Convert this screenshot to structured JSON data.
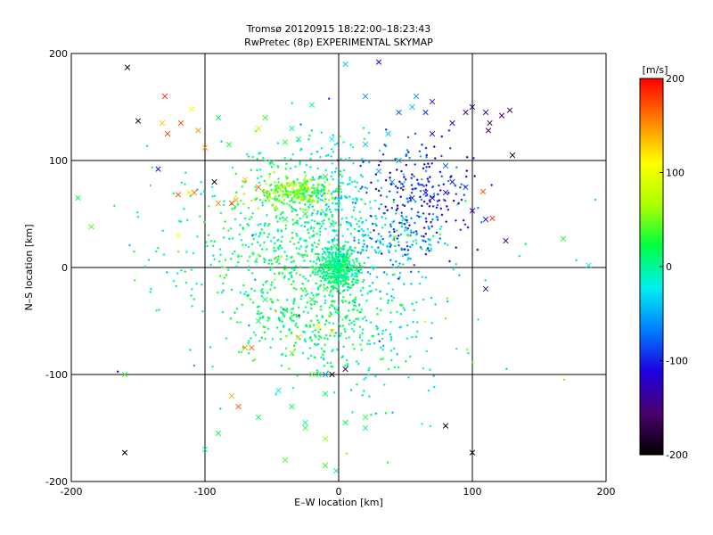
{
  "chart_data": {
    "type": "scatter",
    "title": "Tromsø 20120915  18:22:00–18:23:43",
    "subtitle": "RwPretec (8p) EXPERIMENTAL SKYMAP",
    "xlabel": "E–W location [km]",
    "ylabel": "N–S location [km]",
    "xlim": [
      -200,
      200
    ],
    "ylim": [
      -200,
      200
    ],
    "xticks": [
      -200,
      -100,
      0,
      100,
      200
    ],
    "yticks": [
      -200,
      -100,
      0,
      100,
      200
    ],
    "grid": true,
    "colorbar": {
      "label": "[m/s]",
      "min": -200,
      "max": 200,
      "ticks": [
        200,
        100,
        0,
        -100,
        -200
      ],
      "colormap": [
        "#000000",
        "#4b006e",
        "#1c00e0",
        "#0080ff",
        "#00f0f0",
        "#00ff40",
        "#b0ff00",
        "#ffff00",
        "#ff8000",
        "#ff0000"
      ]
    },
    "series": [
      {
        "marker": "cross",
        "points": [
          [
            -158,
            187,
            -200
          ],
          [
            -130,
            160,
            185
          ],
          [
            -150,
            137,
            -180
          ],
          [
            -132,
            135,
            130
          ],
          [
            -128,
            125,
            180
          ],
          [
            -118,
            135,
            175
          ],
          [
            -110,
            148,
            110
          ],
          [
            -105,
            128,
            150
          ],
          [
            -135,
            92,
            -120
          ],
          [
            -108,
            70,
            160
          ],
          [
            -120,
            68,
            170
          ],
          [
            -112,
            70,
            120
          ],
          [
            -100,
            112,
            150
          ],
          [
            -120,
            30,
            110
          ],
          [
            -93,
            80,
            -200
          ],
          [
            -90,
            60,
            150
          ],
          [
            -80,
            60,
            175
          ],
          [
            -60,
            75,
            165
          ],
          [
            -55,
            70,
            130
          ],
          [
            -77,
            63,
            145
          ],
          [
            -70,
            82,
            130
          ],
          [
            -60,
            130,
            70
          ],
          [
            -55,
            140,
            30
          ],
          [
            -50,
            98,
            10
          ],
          [
            -40,
            117,
            30
          ],
          [
            -30,
            120,
            10
          ],
          [
            -35,
            130,
            0
          ],
          [
            -20,
            152,
            -10
          ],
          [
            -10,
            85,
            20
          ],
          [
            -15,
            70,
            5
          ],
          [
            -25,
            50,
            15
          ],
          [
            -40,
            45,
            20
          ],
          [
            -45,
            75,
            60
          ],
          [
            -30,
            70,
            50
          ],
          [
            -25,
            80,
            40
          ],
          [
            -5,
            40,
            10
          ],
          [
            -3,
            20,
            0
          ],
          [
            -8,
            10,
            5
          ],
          [
            5,
            -5,
            -10
          ],
          [
            0,
            0,
            0
          ],
          [
            -10,
            -20,
            30
          ],
          [
            -20,
            -30,
            25
          ],
          [
            -40,
            -40,
            20
          ],
          [
            -55,
            -30,
            15
          ],
          [
            -60,
            -50,
            10
          ],
          [
            -65,
            -75,
            160
          ],
          [
            -70,
            -75,
            150
          ],
          [
            -30,
            -65,
            130
          ],
          [
            -15,
            -55,
            110
          ],
          [
            -5,
            -60,
            120
          ],
          [
            -35,
            -80,
            50
          ],
          [
            -20,
            -100,
            40
          ],
          [
            -10,
            -100,
            -60
          ],
          [
            -5,
            -100,
            -190
          ],
          [
            5,
            -95,
            -170
          ],
          [
            -45,
            -115,
            -20
          ],
          [
            -35,
            -130,
            10
          ],
          [
            -25,
            -150,
            40
          ],
          [
            -10,
            -160,
            60
          ],
          [
            5,
            -145,
            20
          ],
          [
            -60,
            -140,
            20
          ],
          [
            -90,
            -155,
            20
          ],
          [
            -75,
            -130,
            170
          ],
          [
            -80,
            -120,
            140
          ],
          [
            -10,
            -185,
            30
          ],
          [
            -40,
            -180,
            40
          ],
          [
            -100,
            -170,
            5
          ],
          [
            20,
            -140,
            30
          ],
          [
            -2,
            -190,
            10
          ],
          [
            -160,
            -173,
            -200
          ],
          [
            58,
            160,
            -60
          ],
          [
            55,
            150,
            -40
          ],
          [
            70,
            155,
            -100
          ],
          [
            65,
            145,
            -100
          ],
          [
            70,
            125,
            -120
          ],
          [
            85,
            135,
            -130
          ],
          [
            95,
            145,
            -150
          ],
          [
            100,
            150,
            -180
          ],
          [
            110,
            145,
            -150
          ],
          [
            112,
            128,
            -150
          ],
          [
            113,
            135,
            -160
          ],
          [
            122,
            142,
            -150
          ],
          [
            128,
            147,
            -160
          ],
          [
            130,
            105,
            -200
          ],
          [
            80,
            95,
            -80
          ],
          [
            45,
            100,
            -60
          ],
          [
            20,
            115,
            -40
          ],
          [
            30,
            90,
            -50
          ],
          [
            40,
            80,
            -60
          ],
          [
            55,
            65,
            -100
          ],
          [
            65,
            70,
            -110
          ],
          [
            70,
            65,
            -120
          ],
          [
            80,
            70,
            -110
          ],
          [
            85,
            80,
            -100
          ],
          [
            95,
            75,
            -90
          ],
          [
            100,
            53,
            -120
          ],
          [
            110,
            45,
            -110
          ],
          [
            108,
            71,
            170
          ],
          [
            115,
            46,
            180
          ],
          [
            110,
            -20,
            -150
          ],
          [
            125,
            25,
            -160
          ],
          [
            168,
            27,
            30
          ],
          [
            187,
            2,
            -20
          ],
          [
            -5,
            120,
            -20
          ],
          [
            5,
            190,
            -40
          ],
          [
            30,
            192,
            -120
          ],
          [
            20,
            160,
            -60
          ],
          [
            45,
            145,
            -80
          ],
          [
            37,
            125,
            -40
          ],
          [
            -10,
            -118,
            10
          ],
          [
            -15,
            -100,
            20
          ],
          [
            -25,
            -145,
            -10
          ],
          [
            20,
            -150,
            10
          ],
          [
            80,
            -148,
            -200
          ],
          [
            100,
            -173,
            -200
          ],
          [
            -160,
            -100,
            30
          ],
          [
            -195,
            65,
            20
          ],
          [
            -185,
            38,
            40
          ],
          [
            -82,
            115,
            30
          ],
          [
            -90,
            140,
            20
          ]
        ]
      },
      {
        "marker": "dot",
        "note": "dense small-point cloud of returns",
        "points": []
      }
    ]
  }
}
